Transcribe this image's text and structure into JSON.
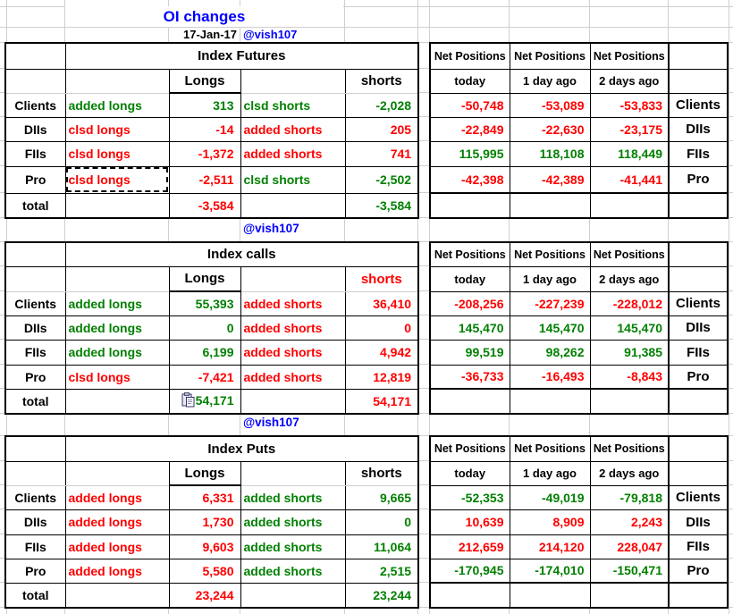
{
  "page": {
    "title": "OI changes",
    "date": "17-Jan-17",
    "handle": "@vish107",
    "colors": {
      "green": "#008000",
      "red": "#ff0000",
      "blue": "#0000ff",
      "black": "#000000",
      "grid": "#cfcfcf"
    }
  },
  "icons": {
    "total_paste": "paste-icon"
  },
  "net_headers": {
    "title": "Net Positions",
    "cols": [
      "today",
      "1 day ago",
      "2 days ago"
    ]
  },
  "sections": [
    {
      "title": "Index Futures",
      "longs_header": "Longs",
      "shorts_header": "shorts",
      "shorts_header_color": "black",
      "rows": [
        {
          "label": "Clients",
          "long_action": "added longs",
          "long_value": "313",
          "long_color": "green",
          "short_action": "clsd shorts",
          "short_value": "-2,028",
          "short_color": "green",
          "marquee": false
        },
        {
          "label": "DIIs",
          "long_action": "clsd longs",
          "long_value": "-14",
          "long_color": "red",
          "short_action": "added shorts",
          "short_value": "205",
          "short_color": "red",
          "marquee": false
        },
        {
          "label": "FIIs",
          "long_action": "clsd longs",
          "long_value": "-1,372",
          "long_color": "red",
          "short_action": "added shorts",
          "short_value": "741",
          "short_color": "red",
          "marquee": false
        },
        {
          "label": "Pro",
          "long_action": "clsd longs",
          "long_value": "-2,511",
          "long_color": "red",
          "short_action": "clsd shorts",
          "short_value": "-2,502",
          "short_color": "green",
          "marquee": true
        }
      ],
      "total": {
        "label": "total",
        "long_value": "-3,584",
        "long_color": "red",
        "short_value": "-3,584",
        "short_color": "green",
        "paste_icon": false
      },
      "net_rows": [
        {
          "label": "Clients",
          "color": "red",
          "values": [
            "-50,748",
            "-53,089",
            "-53,833"
          ]
        },
        {
          "label": "DIIs",
          "color": "red",
          "values": [
            "-22,849",
            "-22,630",
            "-23,175"
          ]
        },
        {
          "label": "FIIs",
          "color": "green",
          "values": [
            "115,995",
            "118,108",
            "118,449"
          ]
        },
        {
          "label": "Pro",
          "color": "red",
          "values": [
            "-42,398",
            "-42,389",
            "-41,441"
          ]
        }
      ]
    },
    {
      "title": "Index calls",
      "handle_above": "@vish107",
      "longs_header": "Longs",
      "shorts_header": "shorts",
      "shorts_header_color": "red",
      "rows": [
        {
          "label": "Clients",
          "long_action": "added longs",
          "long_value": "55,393",
          "long_color": "green",
          "short_action": "added shorts",
          "short_value": "36,410",
          "short_color": "red",
          "marquee": false
        },
        {
          "label": "DIIs",
          "long_action": "added longs",
          "long_value": "0",
          "long_color": "green",
          "short_action": "added shorts",
          "short_value": "0",
          "short_color": "red",
          "marquee": false
        },
        {
          "label": "FIIs",
          "long_action": "added longs",
          "long_value": "6,199",
          "long_color": "green",
          "short_action": "added shorts",
          "short_value": "4,942",
          "short_color": "red",
          "marquee": false
        },
        {
          "label": "Pro",
          "long_action": "clsd longs",
          "long_value": "-7,421",
          "long_color": "red",
          "short_action": "added shorts",
          "short_value": "12,819",
          "short_color": "red",
          "marquee": false
        }
      ],
      "total": {
        "label": "total",
        "long_value": "54,171",
        "long_color": "green",
        "short_value": "54,171",
        "short_color": "red",
        "paste_icon": true
      },
      "net_rows": [
        {
          "label": "Clients",
          "color": "red",
          "values": [
            "-208,256",
            "-227,239",
            "-228,012"
          ]
        },
        {
          "label": "DIIs",
          "color": "green",
          "values": [
            "145,470",
            "145,470",
            "145,470"
          ]
        },
        {
          "label": "FIIs",
          "color": "green",
          "values": [
            "99,519",
            "98,262",
            "91,385"
          ]
        },
        {
          "label": "Pro",
          "color": "red",
          "values": [
            "-36,733",
            "-16,493",
            "-8,843"
          ]
        }
      ]
    },
    {
      "title": "Index Puts",
      "handle_above": "@vish107",
      "longs_header": "Longs",
      "shorts_header": "shorts",
      "shorts_header_color": "black",
      "rows": [
        {
          "label": "Clients",
          "long_action": "added longs",
          "long_value": "6,331",
          "long_color": "red",
          "short_action": "added shorts",
          "short_value": "9,665",
          "short_color": "green",
          "marquee": false
        },
        {
          "label": "DIIs",
          "long_action": "added longs",
          "long_value": "1,730",
          "long_color": "red",
          "short_action": "added shorts",
          "short_value": "0",
          "short_color": "green",
          "marquee": false
        },
        {
          "label": "FIIs",
          "long_action": "added longs",
          "long_value": "9,603",
          "long_color": "red",
          "short_action": "added shorts",
          "short_value": "11,064",
          "short_color": "green",
          "marquee": false
        },
        {
          "label": "Pro",
          "long_action": "added longs",
          "long_value": "5,580",
          "long_color": "red",
          "short_action": "added shorts",
          "short_value": "2,515",
          "short_color": "green",
          "marquee": false
        }
      ],
      "total": {
        "label": "total",
        "long_value": "23,244",
        "long_color": "red",
        "short_value": "23,244",
        "short_color": "green",
        "paste_icon": false
      },
      "net_rows": [
        {
          "label": "Clients",
          "color": "green",
          "values": [
            "-52,353",
            "-49,019",
            "-79,818"
          ]
        },
        {
          "label": "DIIs",
          "color": "red",
          "values": [
            "10,639",
            "8,909",
            "2,243"
          ]
        },
        {
          "label": "FIIs",
          "color": "red",
          "values": [
            "212,659",
            "214,120",
            "228,047"
          ]
        },
        {
          "label": "Pro",
          "color": "green",
          "values": [
            "-170,945",
            "-174,010",
            "-150,471"
          ]
        }
      ]
    }
  ]
}
